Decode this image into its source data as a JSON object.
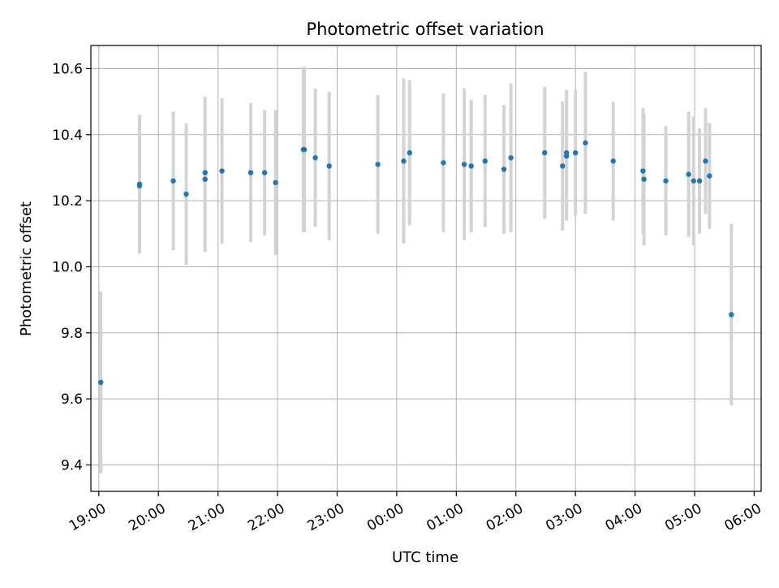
{
  "chart_data": {
    "type": "scatter",
    "title": "Photometric offset variation",
    "xlabel": "UTC time",
    "ylabel": "Photometric offset",
    "x_axis_kind": "time",
    "xlim": [
      "18:52",
      "06:07"
    ],
    "ylim": [
      9.32,
      10.67
    ],
    "x_ticks": [
      "19:00",
      "20:00",
      "21:00",
      "22:00",
      "23:00",
      "00:00",
      "01:00",
      "02:00",
      "03:00",
      "04:00",
      "05:00",
      "06:00"
    ],
    "y_ticks": [
      "9.4",
      "9.6",
      "9.8",
      "10.0",
      "10.2",
      "10.4",
      "10.6"
    ],
    "grid": true,
    "colors": {
      "point": "#1f77b4",
      "error_bar": "#d3d3d3",
      "grid": "#b0b0b0"
    },
    "points": [
      {
        "time": "19:02",
        "y": 9.65,
        "err": 0.275
      },
      {
        "time": "19:41",
        "y": 10.25,
        "err": 0.21
      },
      {
        "time": "19:41",
        "y": 10.245,
        "err": 0.2
      },
      {
        "time": "20:15",
        "y": 10.26,
        "err": 0.21
      },
      {
        "time": "20:28",
        "y": 10.22,
        "err": 0.215
      },
      {
        "time": "20:47",
        "y": 10.285,
        "err": 0.23
      },
      {
        "time": "20:47",
        "y": 10.265,
        "err": 0.22
      },
      {
        "time": "21:04",
        "y": 10.29,
        "err": 0.22
      },
      {
        "time": "21:33",
        "y": 10.285,
        "err": 0.21
      },
      {
        "time": "21:47",
        "y": 10.285,
        "err": 0.19
      },
      {
        "time": "21:58",
        "y": 10.255,
        "err": 0.22
      },
      {
        "time": "22:26",
        "y": 10.355,
        "err": 0.25
      },
      {
        "time": "22:27",
        "y": 10.355,
        "err": 0.25
      },
      {
        "time": "22:38",
        "y": 10.33,
        "err": 0.21
      },
      {
        "time": "22:52",
        "y": 10.305,
        "err": 0.225
      },
      {
        "time": "23:41",
        "y": 10.31,
        "err": 0.21
      },
      {
        "time": "00:07",
        "y": 10.32,
        "err": 0.25
      },
      {
        "time": "00:13",
        "y": 10.345,
        "err": 0.22
      },
      {
        "time": "00:47",
        "y": 10.315,
        "err": 0.21
      },
      {
        "time": "01:08",
        "y": 10.31,
        "err": 0.23
      },
      {
        "time": "01:15",
        "y": 10.305,
        "err": 0.2
      },
      {
        "time": "01:29",
        "y": 10.32,
        "err": 0.2
      },
      {
        "time": "01:48",
        "y": 10.295,
        "err": 0.195
      },
      {
        "time": "01:55",
        "y": 10.33,
        "err": 0.225
      },
      {
        "time": "02:29",
        "y": 10.345,
        "err": 0.2
      },
      {
        "time": "02:47",
        "y": 10.305,
        "err": 0.195
      },
      {
        "time": "02:51",
        "y": 10.345,
        "err": 0.19
      },
      {
        "time": "02:51",
        "y": 10.335,
        "err": 0.195
      },
      {
        "time": "03:00",
        "y": 10.345,
        "err": 0.19
      },
      {
        "time": "03:10",
        "y": 10.375,
        "err": 0.215
      },
      {
        "time": "03:38",
        "y": 10.32,
        "err": 0.18
      },
      {
        "time": "04:08",
        "y": 10.29,
        "err": 0.19
      },
      {
        "time": "04:09",
        "y": 10.265,
        "err": 0.2
      },
      {
        "time": "04:31",
        "y": 10.26,
        "err": 0.165
      },
      {
        "time": "04:54",
        "y": 10.28,
        "err": 0.19
      },
      {
        "time": "04:59",
        "y": 10.26,
        "err": 0.195
      },
      {
        "time": "05:05",
        "y": 10.26,
        "err": 0.16
      },
      {
        "time": "05:11",
        "y": 10.32,
        "err": 0.16
      },
      {
        "time": "05:15",
        "y": 10.275,
        "err": 0.16
      },
      {
        "time": "05:37",
        "y": 9.855,
        "err": 0.275
      }
    ]
  }
}
